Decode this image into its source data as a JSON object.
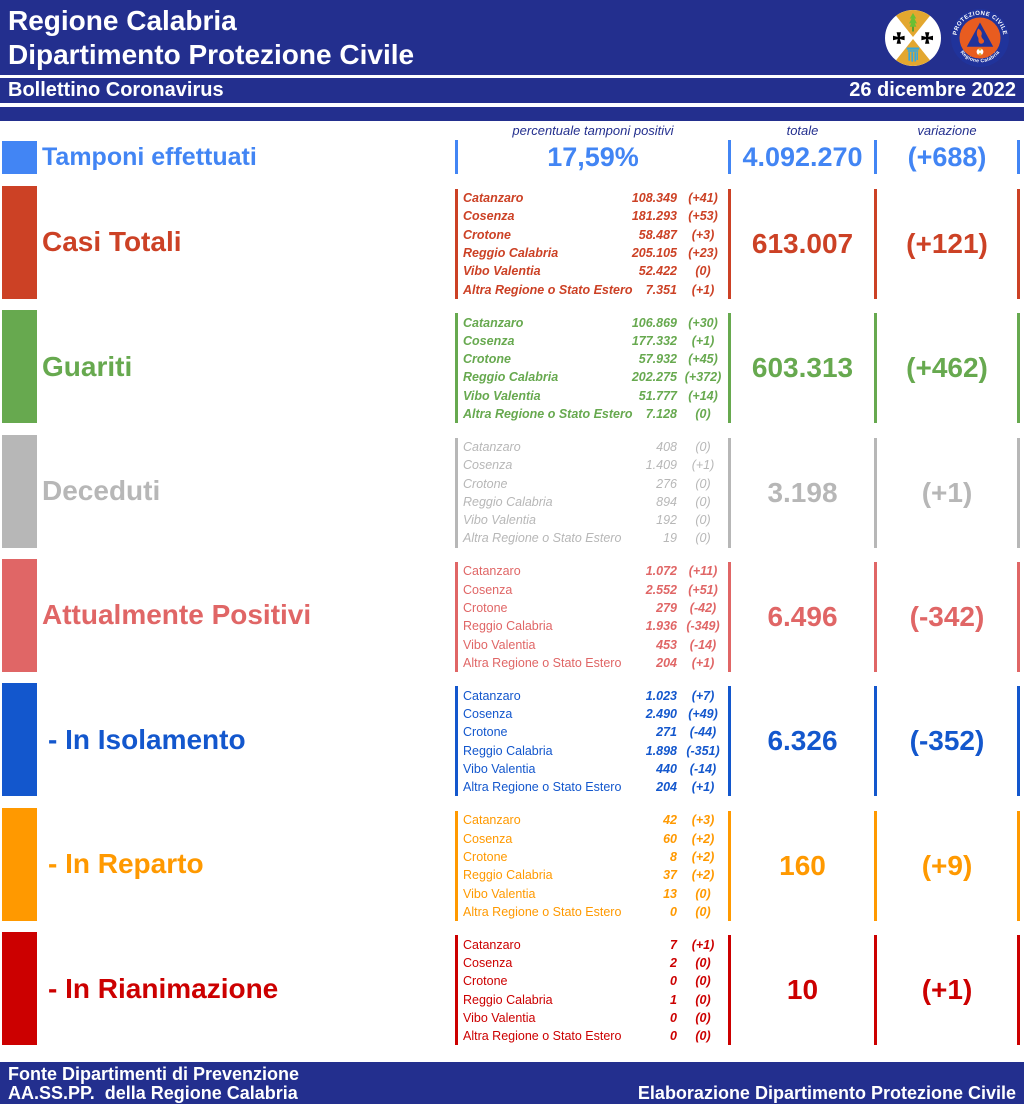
{
  "accent_colors": {
    "deep_blue": "#232f8e",
    "tamponi_blue": "#4285f4",
    "casi_red": "#cc4125",
    "guariti_green": "#67a94f",
    "deceduti_gray": "#b7b7b7",
    "positivi_salmon": "#e06666",
    "isolamento_blue": "#1357cd",
    "reparto_orange": "#ff9900",
    "rianimazione_red": "#cc0000"
  },
  "header": {
    "title_line1": "Regione Calabria",
    "title_line2": "Dipartimento Protezione Civile",
    "subtitle": "Bollettino Coronavirus",
    "date": "26 dicembre 2022",
    "logo_crest": "stemma-regione-calabria",
    "logo_pc_text_top": "PROTEZIONE CIVILE",
    "logo_pc_text_bottom": "Regione Calabria"
  },
  "columns": {
    "percent": "percentuale tamponi positivi",
    "total": "totale",
    "variation": "variazione"
  },
  "summary_row": {
    "label": "Tamponi effettuati",
    "percent": "17,59%",
    "total": "4.092.270",
    "variation": "(+688)",
    "color": "#4285f4"
  },
  "provinces": [
    "Catanzaro",
    "Cosenza",
    "Crotone",
    "Reggio Calabria",
    "Vibo Valentia",
    "Altra Regione o Stato Estero"
  ],
  "rows": [
    {
      "label": "Casi Totali",
      "color": "#cc4125",
      "indent": false,
      "name_font": "bi",
      "num_font": "bi",
      "values": [
        "108.349",
        "181.293",
        "58.487",
        "205.105",
        "52.422",
        "7.351"
      ],
      "deltas": [
        "(+41)",
        "(+53)",
        "(+3)",
        "(+23)",
        "(0)",
        "(+1)"
      ],
      "total": "613.007",
      "variation": "(+121)"
    },
    {
      "label": "Guariti",
      "color": "#67a94f",
      "indent": false,
      "name_font": "bi",
      "num_font": "bi",
      "values": [
        "106.869",
        "177.332",
        "57.932",
        "202.275",
        "51.777",
        "7.128"
      ],
      "deltas": [
        "(+30)",
        "(+1)",
        "(+45)",
        "(+372)",
        "(+14)",
        "(0)"
      ],
      "total": "603.313",
      "variation": "(+462)"
    },
    {
      "label": "Deceduti",
      "color": "#b7b7b7",
      "indent": false,
      "name_font": "i",
      "num_font": "i",
      "values": [
        "408",
        "1.409",
        "276",
        "894",
        "192",
        "19"
      ],
      "deltas": [
        "(0)",
        "(+1)",
        "(0)",
        "(0)",
        "(0)",
        "(0)"
      ],
      "total": "3.198",
      "variation": "(+1)"
    },
    {
      "label": "Attualmente Positivi",
      "color": "#e06666",
      "indent": false,
      "name_font": "r",
      "num_font": "bi",
      "values": [
        "1.072",
        "2.552",
        "279",
        "1.936",
        "453",
        "204"
      ],
      "deltas": [
        "(+11)",
        "(+51)",
        "(-42)",
        "(-349)",
        "(-14)",
        "(+1)"
      ],
      "total": "6.496",
      "variation": "(-342)"
    },
    {
      "label": "- In Isolamento",
      "color": "#1357cd",
      "indent": true,
      "name_font": "r",
      "num_font": "bi",
      "values": [
        "1.023",
        "2.490",
        "271",
        "1.898",
        "440",
        "204"
      ],
      "deltas": [
        "(+7)",
        "(+49)",
        "(-44)",
        "(-351)",
        "(-14)",
        "(+1)"
      ],
      "total": "6.326",
      "variation": "(-352)"
    },
    {
      "label": "- In Reparto",
      "color": "#ff9900",
      "indent": true,
      "name_font": "r",
      "num_font": "bi",
      "values": [
        "42",
        "60",
        "8",
        "37",
        "13",
        "0"
      ],
      "deltas": [
        "(+3)",
        "(+2)",
        "(+2)",
        "(+2)",
        "(0)",
        "(0)"
      ],
      "total": "160",
      "variation": "(+9)"
    },
    {
      "label": "- In Rianimazione",
      "color": "#cc0000",
      "indent": true,
      "name_font": "r",
      "num_font": "bi",
      "values": [
        "7",
        "2",
        "0",
        "1",
        "0",
        "0"
      ],
      "deltas": [
        "(+1)",
        "(0)",
        "(0)",
        "(0)",
        "(0)",
        "(0)"
      ],
      "total": "10",
      "variation": "(+1)"
    }
  ],
  "footer": {
    "line1": "Fonte Dipartimenti di Prevenzione",
    "line2": "AA.SS.PP.  della Regione Calabria",
    "right": "Elaborazione Dipartimento Protezione Civile"
  }
}
